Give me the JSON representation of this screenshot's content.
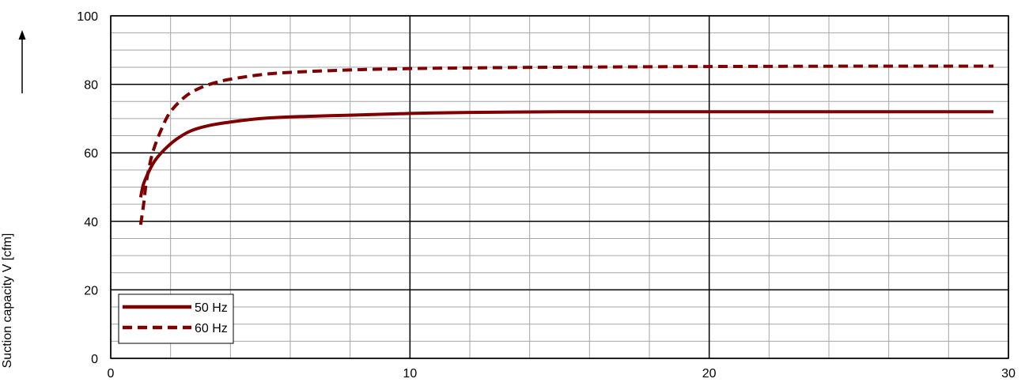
{
  "chart_data": {
    "type": "line",
    "title": "",
    "xlabel": "",
    "ylabel": "Suction capacity V [cfm]",
    "xlim": [
      0,
      30
    ],
    "ylim": [
      0,
      100
    ],
    "x_ticks": [
      "0",
      "10",
      "20",
      "30"
    ],
    "y_ticks": [
      "0",
      "20",
      "40",
      "60",
      "80",
      "100"
    ],
    "grid": true,
    "legend_position": "bottom-left",
    "series": [
      {
        "name": "50 Hz",
        "style": "solid",
        "color": "#7f0000",
        "x": [
          1.0,
          1.1,
          1.3,
          1.5,
          1.8,
          2.2,
          2.7,
          3.3,
          4.0,
          5.0,
          6.0,
          8.0,
          10.0,
          12.0,
          15.0,
          20.0,
          25.0,
          29.5
        ],
        "y": [
          47,
          51,
          55,
          58,
          61,
          64,
          66.5,
          68,
          69,
          70,
          70.5,
          71,
          71.5,
          71.8,
          72,
          72,
          72,
          72
        ]
      },
      {
        "name": "60 Hz",
        "style": "dashed",
        "color": "#7f0000",
        "x": [
          1.0,
          1.1,
          1.2,
          1.4,
          1.7,
          2.0,
          2.5,
          3.0,
          3.5,
          4.0,
          5.0,
          6.0,
          8.0,
          10.0,
          12.0,
          15.0,
          20.0,
          25.0,
          29.5
        ],
        "y": [
          39,
          45,
          52,
          60,
          67,
          72,
          76.5,
          79,
          80.5,
          81.5,
          82.8,
          83.5,
          84.2,
          84.6,
          84.8,
          85,
          85.2,
          85.3,
          85.3
        ]
      }
    ]
  }
}
